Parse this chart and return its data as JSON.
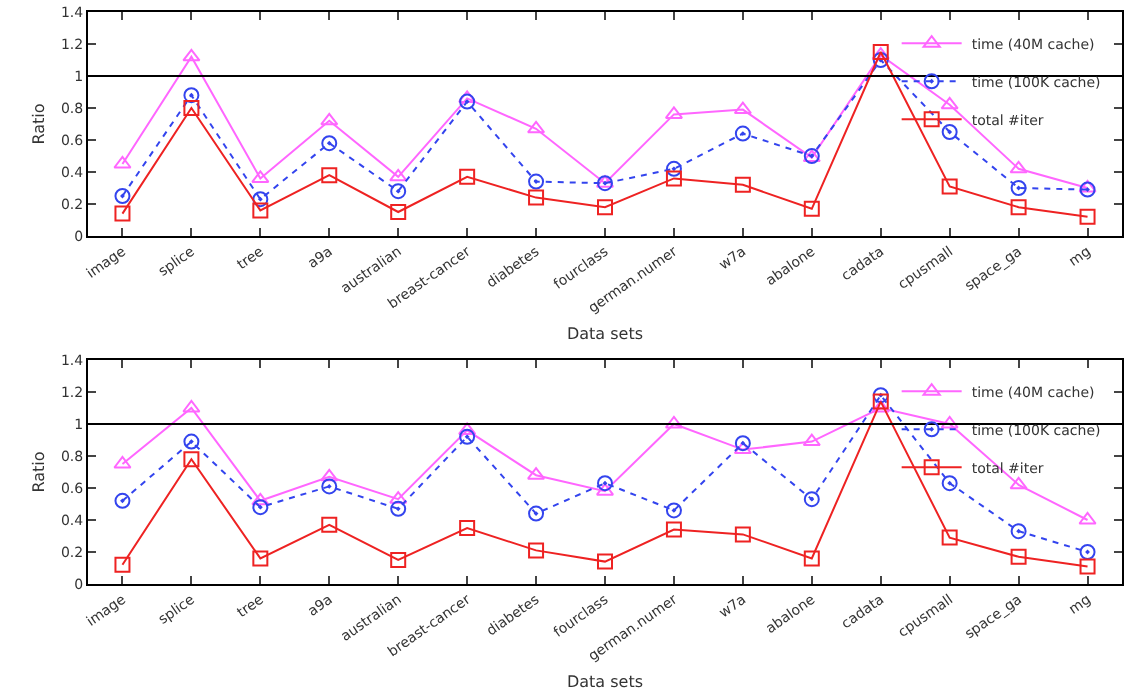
{
  "chart_data": [
    {
      "type": "line",
      "xlabel": "Data sets",
      "ylabel": "Ratio",
      "legend": "top right",
      "grid": false,
      "categories": [
        "image",
        "splice",
        "tree",
        "a9a",
        "australian",
        "breast-cancer",
        "diabetes",
        "fourclass",
        "german.numer",
        "w7a",
        "abalone",
        "cadata",
        "cpusmall",
        "space_ga",
        "mg"
      ],
      "ylim": [
        0,
        1.4
      ],
      "yticks": [
        0,
        0.2,
        0.4,
        0.6,
        0.8,
        1,
        1.2,
        1.4
      ],
      "ref_lines": [
        {
          "axis": "y",
          "value": 1,
          "color": "#000000"
        }
      ],
      "series": [
        {
          "name": "time (40M cache)",
          "color": "#ff66ff",
          "marker": "triangle",
          "line_style": "solid",
          "values": [
            0.45,
            1.12,
            0.36,
            0.72,
            0.37,
            0.86,
            0.67,
            0.33,
            0.76,
            0.79,
            0.49,
            1.13,
            0.82,
            0.42,
            0.3
          ]
        },
        {
          "name": "time (100K cache)",
          "color": "#3344ee",
          "marker": "circle",
          "line_style": "dotted",
          "values": [
            0.25,
            0.88,
            0.23,
            0.58,
            0.28,
            0.84,
            0.34,
            0.33,
            0.42,
            0.64,
            0.5,
            1.1,
            0.65,
            0.3,
            0.29
          ]
        },
        {
          "name": "total #iter",
          "color": "#ee2222",
          "marker": "square",
          "line_style": "solid",
          "values": [
            0.14,
            0.8,
            0.16,
            0.38,
            0.15,
            0.37,
            0.24,
            0.18,
            0.36,
            0.32,
            0.17,
            1.15,
            0.31,
            0.18,
            0.12
          ]
        }
      ]
    },
    {
      "type": "line",
      "xlabel": "Data sets",
      "ylabel": "Ratio",
      "legend": "top right",
      "grid": false,
      "categories": [
        "image",
        "splice",
        "tree",
        "a9a",
        "australian",
        "breast-cancer",
        "diabetes",
        "fourclass",
        "german.numer",
        "w7a",
        "abalone",
        "cadata",
        "cpusmall",
        "space_ga",
        "mg"
      ],
      "ylim": [
        0,
        1.4
      ],
      "yticks": [
        0,
        0.2,
        0.4,
        0.6,
        0.8,
        1,
        1.2,
        1.4
      ],
      "ref_lines": [
        {
          "axis": "y",
          "value": 1,
          "color": "#000000"
        }
      ],
      "series": [
        {
          "name": "time (40M cache)",
          "color": "#ff66ff",
          "marker": "triangle",
          "line_style": "solid",
          "values": [
            0.75,
            1.1,
            0.52,
            0.67,
            0.53,
            0.96,
            0.68,
            0.58,
            1.0,
            0.84,
            0.89,
            1.1,
            1.0,
            0.62,
            0.4
          ]
        },
        {
          "name": "time (100K cache)",
          "color": "#3344ee",
          "marker": "circle",
          "line_style": "dotted",
          "values": [
            0.52,
            0.89,
            0.48,
            0.61,
            0.47,
            0.92,
            0.44,
            0.63,
            0.46,
            0.88,
            0.53,
            1.18,
            0.63,
            0.33,
            0.2
          ]
        },
        {
          "name": "total #iter",
          "color": "#ee2222",
          "marker": "square",
          "line_style": "solid",
          "values": [
            0.12,
            0.78,
            0.16,
            0.37,
            0.15,
            0.35,
            0.21,
            0.14,
            0.34,
            0.31,
            0.16,
            1.14,
            0.29,
            0.17,
            0.11
          ]
        }
      ]
    }
  ]
}
